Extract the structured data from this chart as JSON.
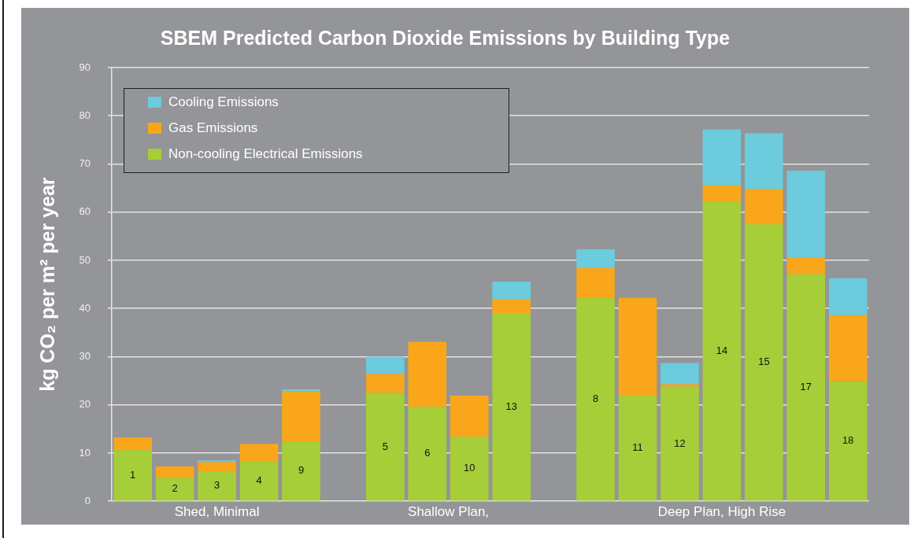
{
  "chart_data": {
    "type": "bar",
    "title": "SBEM Predicted Carbon Dioxide Emissions by Building Type",
    "ylabel": "kg CO₂ per m² per year",
    "categories": [
      "1",
      "2",
      "3",
      "4",
      "9",
      null,
      "5",
      "6",
      "10",
      "13",
      null,
      "8",
      "11",
      "12",
      "14",
      "15",
      "17",
      "18"
    ],
    "annotations": [
      "Shed, Minimal",
      "Shallow Plan,",
      "Deep Plan, High Rise"
    ],
    "stacked": true,
    "series": [
      {
        "name": "Non-cooling Electrical Emissions",
        "color": "#a6ce39",
        "values": [
          10.6,
          4.9,
          6.2,
          8.3,
          12.4,
          null,
          22.5,
          19.6,
          13.4,
          38.9,
          null,
          42.2,
          21.9,
          23.8,
          62.1,
          57.5,
          47.1,
          24.9
        ]
      },
      {
        "name": "Gas Emissions",
        "color": "#faa61a",
        "values": [
          2.6,
          2.3,
          1.9,
          3.6,
          10.4,
          null,
          3.9,
          13.5,
          8.5,
          3.1,
          null,
          6.2,
          20.3,
          0.5,
          3.5,
          7.3,
          3.4,
          13.7
        ]
      },
      {
        "name": "Cooling Emissions",
        "color": "#6ccbdc",
        "values": [
          null,
          null,
          0.4,
          null,
          0.4,
          null,
          3.6,
          null,
          null,
          3.6,
          null,
          3.9,
          null,
          4.4,
          11.6,
          11.6,
          18.1,
          7.7
        ]
      }
    ],
    "ylim": [
      0,
      90
    ],
    "yticks": [
      0,
      10,
      20,
      30,
      40,
      50,
      60,
      70,
      80,
      90
    ],
    "grid": "y",
    "legend": "top left"
  }
}
